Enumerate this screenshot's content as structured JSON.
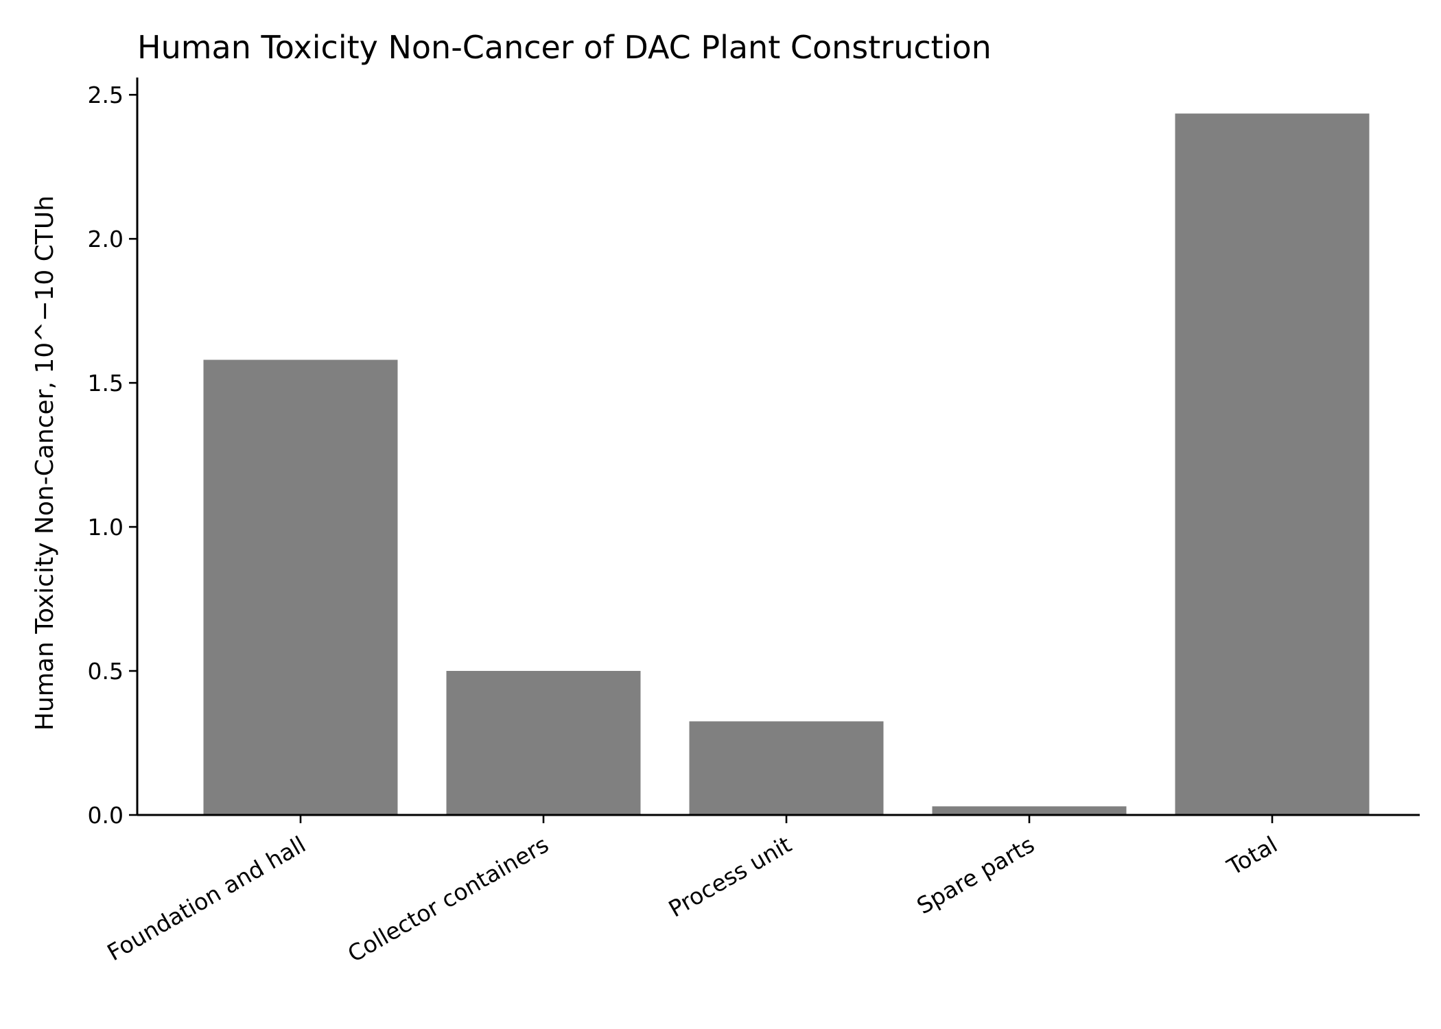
{
  "chart_data": {
    "type": "bar",
    "title": "Human Toxicity Non-Cancer of DAC Plant Construction",
    "xlabel": "",
    "ylabel": "Human Toxicity Non-Cancer, 10^−10 CTUh",
    "categories": [
      "Foundation and hall",
      "Collector containers",
      "Process unit",
      "Spare parts",
      "Total"
    ],
    "values": [
      1.58,
      0.5,
      0.325,
      0.03,
      2.435
    ],
    "ylim": [
      0,
      2.56
    ],
    "yticks": [
      0.0,
      0.5,
      1.0,
      1.5,
      2.0,
      2.5
    ],
    "ytick_labels": [
      "0.0",
      "0.5",
      "1.0",
      "1.5",
      "2.0",
      "2.5"
    ],
    "xtick_rotation_deg": 30,
    "bar_color": "#808080",
    "grid": false,
    "legend": "none",
    "spines": [
      "left",
      "bottom"
    ]
  }
}
